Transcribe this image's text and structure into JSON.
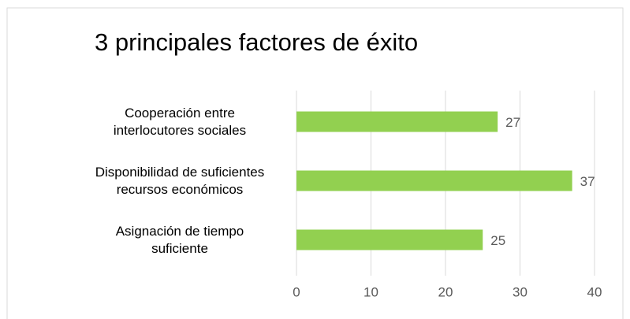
{
  "chart_data": {
    "type": "bar",
    "orientation": "horizontal",
    "title": "3 principales factores de éxito",
    "categories": [
      "Cooperación entre interlocutores sociales",
      "Disponibilidad de suficientes recursos económicos",
      "Asignación de tiempo suficiente"
    ],
    "values": [
      27,
      37,
      25
    ],
    "color": "#92d050",
    "xlim": [
      0,
      40
    ],
    "xticks": [
      0,
      10,
      20,
      30,
      40
    ],
    "grid": true
  }
}
